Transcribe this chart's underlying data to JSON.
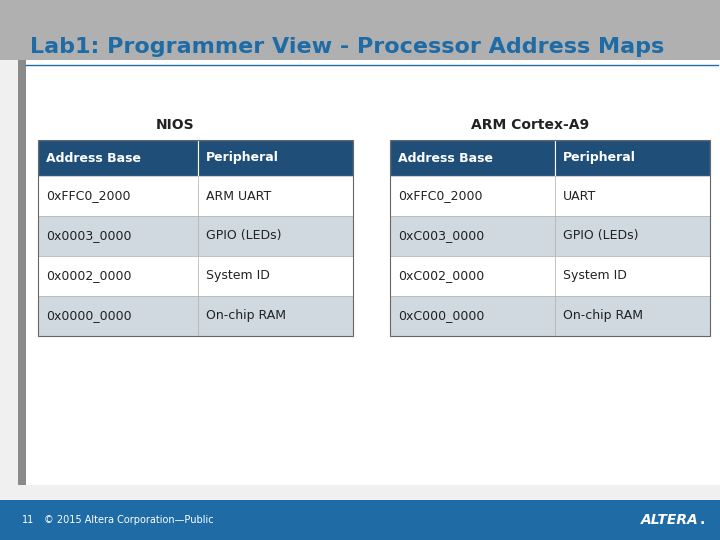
{
  "title": "Lab1: Programmer View - Processor Address Maps",
  "title_color": "#1F6BA5",
  "title_fontsize": 16,
  "background_color": "#F0F0F0",
  "white_bg": "#FFFFFF",
  "header_bg": "#1F4E79",
  "header_text_color": "#FFFFFF",
  "row_colors": [
    "#FFFFFF",
    "#D0D8E0"
  ],
  "text_color": "#222222",
  "nios_label": "NIOS",
  "arm_label": "ARM Cortex-A9",
  "group_label_fontsize": 10,
  "col_headers": [
    "Address Base",
    "Peripheral",
    "Address Base",
    "Peripheral"
  ],
  "nios_data": [
    [
      "0xFFC0_2000",
      "ARM UART"
    ],
    [
      "0x0003_0000",
      "GPIO (LEDs)"
    ],
    [
      "0x0002_0000",
      "System ID"
    ],
    [
      "0x0000_0000",
      "On-chip RAM"
    ]
  ],
  "arm_data": [
    [
      "0xFFC0_2000",
      "UART"
    ],
    [
      "0xC003_0000",
      "GPIO (LEDs)"
    ],
    [
      "0xC002_0000",
      "System ID"
    ],
    [
      "0xC000_0000",
      "On-chip RAM"
    ]
  ],
  "footer_num": "11",
  "footer_text": "© 2015 Altera Corporation—Public",
  "footer_fontsize": 7,
  "bottom_bar_color": "#1F6BA5",
  "corner_color": "#B0B0B0",
  "slide_white": "#FAFAFA"
}
